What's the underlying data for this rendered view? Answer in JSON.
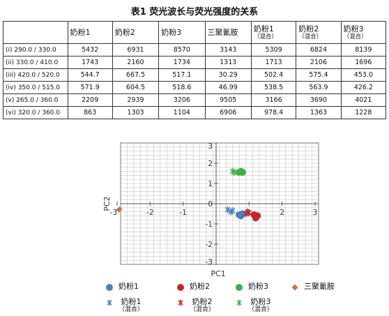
{
  "table": {
    "title": "表1 荧光波长与荧光强度的关系",
    "columns": [
      {
        "label": "",
        "sub": ""
      },
      {
        "label": "奶粉1",
        "sub": ""
      },
      {
        "label": "奶粉2",
        "sub": ""
      },
      {
        "label": "奶粉3",
        "sub": ""
      },
      {
        "label": "三聚氰胺",
        "sub": ""
      },
      {
        "label": "奶粉1",
        "sub": "（混合）"
      },
      {
        "label": "奶粉2",
        "sub": "（混合）"
      },
      {
        "label": "奶粉3",
        "sub": "（混合）"
      }
    ],
    "rows": [
      [
        "(i)   290.0 / 330.0",
        "5432",
        "6931",
        "8570",
        "3143",
        "5309",
        "6824",
        "8139"
      ],
      [
        "(ii)   330.0 / 410.0",
        "1743",
        "2160",
        "1734",
        "1313",
        "1713",
        "2106",
        "1696"
      ],
      [
        "(iii)  420.0 / 520.0",
        "544.7",
        "667.5",
        "517.1",
        "30.29",
        "502.4",
        "575.4",
        "453.0"
      ],
      [
        "(iv)  350.0 / 515.0",
        "571.9",
        "604.5",
        "518.6",
        "46.99",
        "538.5",
        "563.9",
        "426.2"
      ],
      [
        "(v)   265.0 / 360.0",
        "2209",
        "2939",
        "3206",
        "9505",
        "3166",
        "3690",
        "4021"
      ],
      [
        "(vi)  320.0 / 360.0",
        "863",
        "1303",
        "1104",
        "6906",
        "978.4",
        "1363",
        "1228"
      ]
    ]
  },
  "chart_data": {
    "type": "scatter",
    "xlabel": "PC1",
    "ylabel": "PC2",
    "xlim": [
      -3,
      3
    ],
    "ylim": [
      -3,
      3
    ],
    "x_ticks": [
      "-3",
      "-2",
      "-1",
      "0",
      "1",
      "2",
      "3"
    ],
    "y_ticks": [
      "-3",
      "-2",
      "-1",
      "0",
      "1",
      "2",
      "3"
    ],
    "grid": true,
    "legend_position": "bottom",
    "series": [
      {
        "name": "奶粉1",
        "sub": "",
        "marker": "circle",
        "color": "#4a7fc1",
        "points": [
          [
            0.7,
            -0.55
          ],
          [
            0.75,
            -0.6
          ],
          [
            0.8,
            -0.5
          ]
        ]
      },
      {
        "name": "奶粉2",
        "sub": "",
        "marker": "circle",
        "color": "#c0282c",
        "points": [
          [
            1.15,
            -0.55
          ],
          [
            1.2,
            -0.7
          ],
          [
            1.25,
            -0.6
          ]
        ]
      },
      {
        "name": "奶粉3",
        "sub": "",
        "marker": "circle",
        "color": "#3fae49",
        "points": [
          [
            0.7,
            1.55
          ],
          [
            0.75,
            1.6
          ],
          [
            0.8,
            1.55
          ]
        ]
      },
      {
        "name": "三聚氰胺",
        "sub": "",
        "marker": "diamond",
        "color": "#c7744a",
        "points": [
          [
            -2.95,
            -0.3
          ],
          [
            -2.92,
            -0.27
          ]
        ]
      },
      {
        "name": "奶粉1",
        "sub": "（混合）",
        "marker": "asterisk",
        "color": "#4a7fc1",
        "points": [
          [
            0.35,
            -0.3
          ],
          [
            0.45,
            -0.4
          ],
          [
            0.5,
            -0.35
          ]
        ]
      },
      {
        "name": "奶粉2",
        "sub": "（混合）",
        "marker": "asterisk",
        "color": "#c0282c",
        "points": [
          [
            0.95,
            -0.4
          ],
          [
            1.0,
            -0.45
          ],
          [
            0.9,
            -0.5
          ]
        ]
      },
      {
        "name": "奶粉3",
        "sub": "（混合）",
        "marker": "asterisk",
        "color": "#3fae49",
        "points": [
          [
            0.5,
            1.6
          ],
          [
            0.55,
            1.55
          ]
        ]
      }
    ]
  }
}
